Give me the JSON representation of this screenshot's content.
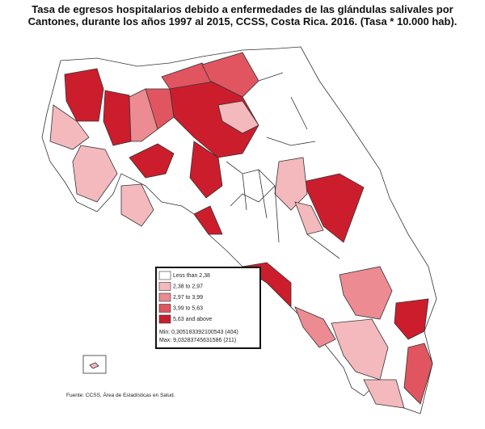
{
  "title": "Tasa de egresos hospitalarios debido a enfermedades de las  glándulas salivales por Cantones, durante los años 1997 al 2015, CCSS, Costa Rica. 2016. (Tasa * 10.000 hab).",
  "legend": {
    "items": [
      {
        "label": "Less than 2,38",
        "color": "#ffffff"
      },
      {
        "label": "2,38 to 2,97",
        "color": "#f4b9bd"
      },
      {
        "label": "2,97 to 3,99",
        "color": "#ec8b92"
      },
      {
        "label": "3,99 to 5,63",
        "color": "#e05560"
      },
      {
        "label": "5,63 and above",
        "color": "#cc1d2d"
      }
    ],
    "min": "Min: 0,305183392100543 (404)",
    "max": "Max: 9,03283745631586 (211)"
  },
  "source": "Fuente: CCSS, Área de Estadísticas en Salud."
}
